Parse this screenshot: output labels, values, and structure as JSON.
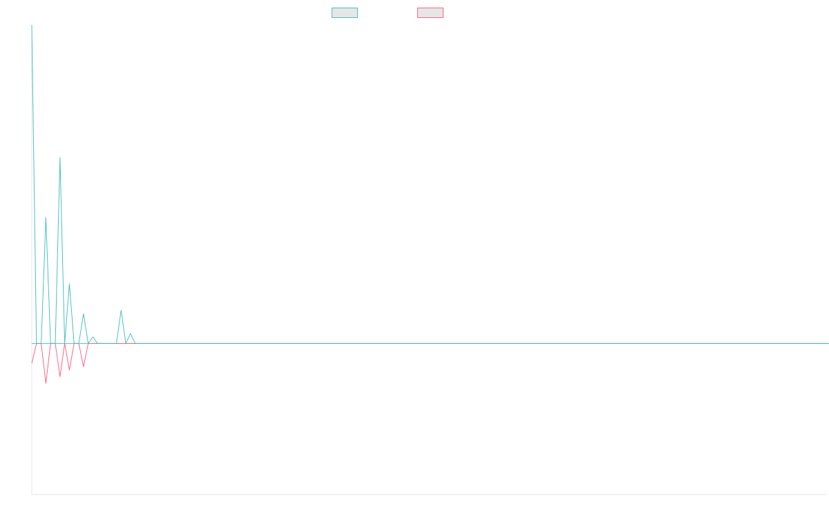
{
  "colors": {
    "background": "#ffffff",
    "axis": "#e5e5e5",
    "legend_fill": "#e6e6e6"
  },
  "chart_data": {
    "type": "line",
    "title": "",
    "xlabel": "",
    "ylabel": "",
    "grid": false,
    "legend_position": "top-center",
    "x_count": 170,
    "ylim": [
      -4.55,
      9.6
    ],
    "series": [
      {
        "color": "#4bc0c0",
        "values": [
          9.6,
          0,
          0,
          3.8,
          0,
          0,
          5.6,
          0,
          1.8,
          0,
          0,
          0.9,
          0,
          0.2,
          0,
          0,
          0,
          0,
          0,
          1.0,
          0,
          0.3,
          0,
          0,
          0,
          0,
          0,
          0,
          0,
          0,
          0,
          0,
          0,
          0,
          0,
          0,
          0,
          0,
          0,
          0,
          0,
          0,
          0,
          0,
          0,
          0,
          0,
          0,
          0,
          0,
          0,
          0,
          0,
          0,
          0,
          0,
          0,
          0,
          0,
          0,
          0,
          0,
          0,
          0,
          0,
          0,
          0,
          0,
          0,
          0,
          0,
          0,
          0,
          0,
          0,
          0,
          0,
          0,
          0,
          0,
          0,
          0,
          0,
          0,
          0,
          0,
          0,
          0,
          0,
          0,
          0,
          0,
          0,
          0,
          0,
          0,
          0,
          0,
          0,
          0,
          0,
          0,
          0,
          0,
          0,
          0,
          0,
          0,
          0,
          0,
          0,
          0,
          0,
          0,
          0,
          0,
          0,
          0,
          0,
          0,
          0,
          0,
          0,
          0,
          0,
          0,
          0,
          0,
          0,
          0,
          0,
          0,
          0,
          0,
          0,
          0,
          0,
          0,
          0,
          0,
          0,
          0,
          0,
          0,
          0,
          0,
          0,
          0,
          0,
          0,
          0,
          0,
          0,
          0,
          0,
          0,
          0,
          0,
          0,
          0,
          0,
          0,
          0,
          0,
          0,
          0,
          0,
          0,
          0,
          0,
          0,
          0,
          0,
          0
        ]
      },
      {
        "color": "#ff6384",
        "values": [
          -0.6,
          0,
          0,
          -1.2,
          0,
          0,
          -1.0,
          0,
          -0.8,
          0,
          0,
          -0.7,
          0,
          0,
          0,
          0,
          0,
          0,
          0,
          0,
          0,
          0,
          0,
          0,
          0,
          0,
          0,
          0,
          0,
          0,
          0,
          0,
          0,
          0,
          0,
          0,
          0,
          0,
          0,
          0,
          0,
          0,
          0,
          0,
          0,
          0,
          0,
          0,
          0,
          0,
          0,
          0,
          0,
          0,
          0,
          0,
          0,
          0,
          0,
          0,
          0,
          0,
          0,
          0,
          0,
          0,
          0,
          0,
          0,
          0,
          0,
          0,
          0,
          0,
          0,
          0,
          0,
          0,
          0,
          0,
          0,
          0,
          0,
          0,
          0,
          0,
          0,
          0,
          0,
          0,
          0,
          0,
          0,
          0,
          0,
          0,
          0,
          0,
          0,
          0,
          0,
          0,
          0,
          0,
          0,
          0,
          0,
          0,
          0,
          0,
          0,
          0,
          0,
          0,
          0,
          0,
          0,
          0,
          0,
          0,
          0,
          0,
          0,
          0,
          0,
          0,
          0,
          0,
          0,
          0,
          0,
          0,
          0,
          0,
          0,
          0,
          0,
          0,
          0,
          0,
          0,
          0,
          0,
          0,
          0,
          0,
          0,
          0,
          0,
          0,
          0,
          0,
          0,
          0,
          0,
          0,
          0,
          0,
          0,
          0,
          0,
          0,
          0,
          0,
          0,
          0,
          0,
          0,
          0,
          0,
          0
        ]
      }
    ]
  }
}
